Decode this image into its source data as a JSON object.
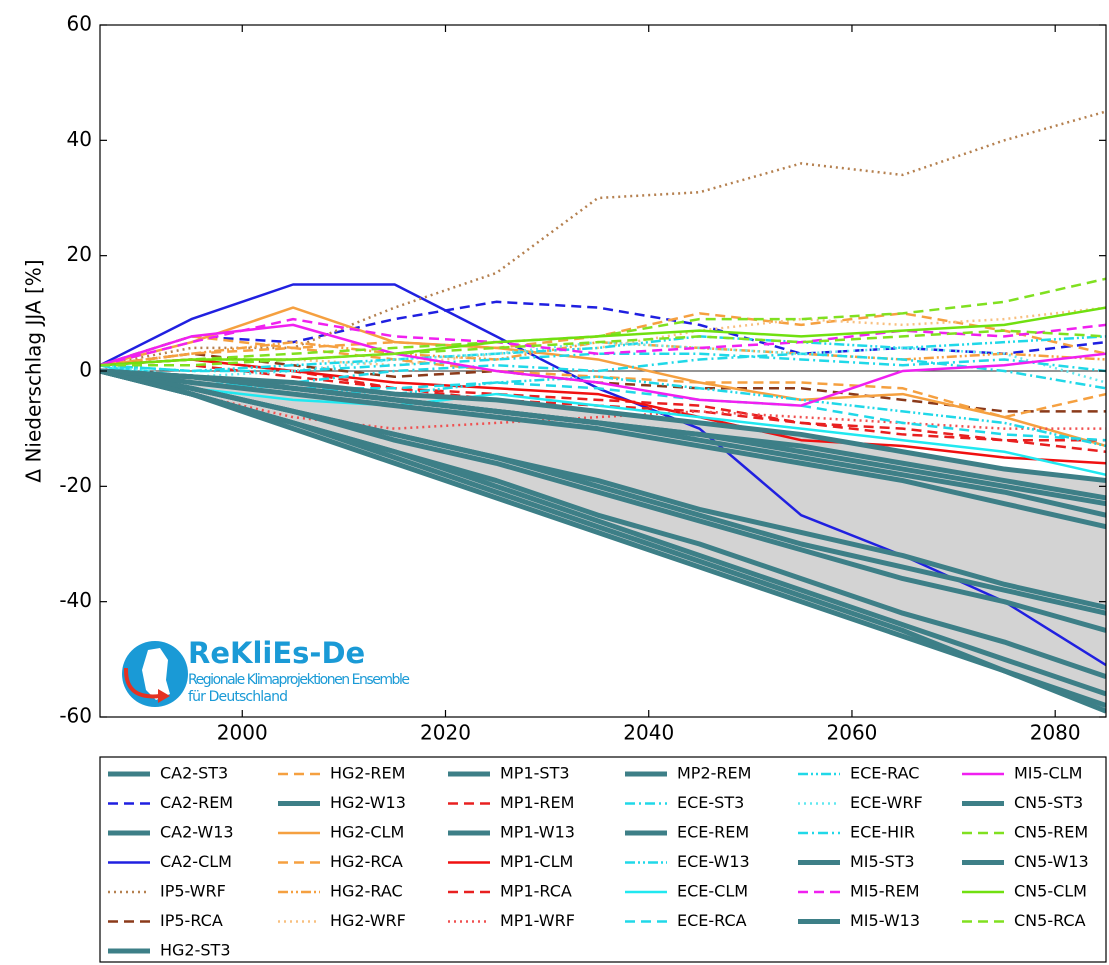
{
  "chart_data": {
    "type": "line",
    "y_label": "Δ Niederschlag JJA [%]",
    "logo_title": "ReKliEs-De",
    "logo_subtitle": [
      "Regionale Klimaprojektionen Ensemble",
      "für Deutschland"
    ],
    "x": [
      1986,
      1995,
      2005,
      2015,
      2025,
      2035,
      2045,
      2055,
      2065,
      2075,
      2085
    ],
    "xlim": [
      1986,
      2085
    ],
    "xticks": [
      2000,
      2020,
      2040,
      2060,
      2080
    ],
    "ylim": [
      -60,
      60
    ],
    "yticks": [
      -60,
      -40,
      -20,
      0,
      20,
      40,
      60
    ],
    "envelope_color": "#d3d3d3",
    "legend": "bottom",
    "series": [
      {
        "name": "CA2-ST3",
        "color": "#3d7f87",
        "style": "thick",
        "values": [
          0,
          -1,
          -3,
          -5,
          -7,
          -9,
          -11,
          -13,
          -16,
          -19,
          -22
        ]
      },
      {
        "name": "CA2-REM",
        "color": "#1f1fe0",
        "style": "dashed",
        "values": [
          1,
          6,
          5,
          9,
          12,
          11,
          8,
          3,
          4,
          3,
          5
        ]
      },
      {
        "name": "CA2-W13",
        "color": "#3d7f87",
        "style": "thick",
        "values": [
          0,
          -3,
          -7,
          -11,
          -15,
          -19,
          -24,
          -28,
          -32,
          -37,
          -41
        ]
      },
      {
        "name": "CA2-CLM",
        "color": "#2020e0",
        "style": "solid",
        "values": [
          1,
          9,
          15,
          15,
          6,
          -3,
          -10,
          -25,
          -32,
          -40,
          -51
        ]
      },
      {
        "name": "IP5-WRF",
        "color": "#b5804f",
        "style": "dotted",
        "values": [
          1,
          4,
          4,
          11,
          17,
          30,
          31,
          36,
          34,
          40,
          45
        ]
      },
      {
        "name": "IP5-RCA",
        "color": "#8b3a1a",
        "style": "dashed",
        "values": [
          1,
          3,
          1,
          -1,
          0,
          -2,
          -3,
          -3,
          -5,
          -7,
          -7
        ]
      },
      {
        "name": "HG2-ST3",
        "color": "#3d7f87",
        "style": "thick",
        "values": [
          0,
          -4,
          -9,
          -14,
          -20,
          -26,
          -32,
          -38,
          -44,
          -50,
          -56
        ]
      },
      {
        "name": "HG2-REM",
        "color": "#f5a040",
        "style": "dashed",
        "values": [
          1,
          6,
          4,
          5,
          4,
          6,
          10,
          8,
          10,
          7,
          3
        ]
      },
      {
        "name": "HG2-W13",
        "color": "#3d7f87",
        "style": "thick",
        "values": [
          0,
          -1,
          -3,
          -5,
          -7,
          -9,
          -12,
          -15,
          -18,
          -21,
          -25
        ]
      },
      {
        "name": "HG2-CLM",
        "color": "#f5a040",
        "style": "solid",
        "values": [
          1,
          5,
          11,
          5,
          4,
          2,
          -2,
          -5,
          -4,
          -8,
          -13
        ]
      },
      {
        "name": "HG2-RCA",
        "color": "#f5a040",
        "style": "dashed",
        "values": [
          1,
          3,
          4,
          2,
          0,
          -1,
          -2,
          -2,
          -3,
          -8,
          -4
        ]
      },
      {
        "name": "HG2-RAC",
        "color": "#f5a040",
        "style": "dashdotdot",
        "values": [
          1,
          3,
          5,
          3,
          2,
          5,
          4,
          3,
          2,
          3,
          2
        ]
      },
      {
        "name": "HG2-WRF",
        "color": "#f8c080",
        "style": "dotted",
        "values": [
          1,
          2,
          2,
          1,
          3,
          4,
          7,
          9,
          8,
          9,
          11
        ]
      },
      {
        "name": "MP1-ST3",
        "color": "#3d7f87",
        "style": "thick",
        "values": [
          0,
          -3,
          -7,
          -12,
          -16,
          -21,
          -26,
          -31,
          -36,
          -40,
          -45
        ]
      },
      {
        "name": "MP1-REM",
        "color": "#e82020",
        "style": "dashed",
        "values": [
          1,
          2,
          0,
          -3,
          -4,
          -5,
          -6,
          -9,
          -10,
          -12,
          -12
        ]
      },
      {
        "name": "MP1-W13",
        "color": "#3d7f87",
        "style": "thick",
        "values": [
          0,
          -1,
          -2,
          -4,
          -5,
          -7,
          -9,
          -11,
          -14,
          -17,
          -19
        ]
      },
      {
        "name": "MP1-CLM",
        "color": "#f01010",
        "style": "solid",
        "values": [
          1,
          2,
          0,
          -2,
          -3,
          -4,
          -8,
          -12,
          -13,
          -15,
          -16
        ]
      },
      {
        "name": "MP1-RCA",
        "color": "#e82020",
        "style": "dashed",
        "values": [
          1,
          1,
          -1,
          -3,
          -5,
          -6,
          -7,
          -9,
          -11,
          -12,
          -14
        ]
      },
      {
        "name": "MP1-WRF",
        "color": "#f05050",
        "style": "dotted",
        "values": [
          1,
          -4,
          -8,
          -10,
          -9,
          -8,
          -7,
          -8,
          -9,
          -10,
          -10
        ]
      },
      {
        "name": "MP2-REM",
        "color": "#3d7f87",
        "style": "thick",
        "values": [
          0,
          -4,
          -10,
          -16,
          -22,
          -28,
          -34,
          -40,
          -46,
          -52,
          -59
        ]
      },
      {
        "name": "ECE-ST3",
        "color": "#20d8e8",
        "style": "dashdot",
        "values": [
          1,
          -1,
          -2,
          0,
          1,
          0,
          2,
          3,
          2,
          0,
          -3
        ]
      },
      {
        "name": "ECE-REM",
        "color": "#3d7f87",
        "style": "thick",
        "values": [
          0,
          -2,
          -4,
          -6,
          -8,
          -10,
          -13,
          -16,
          -19,
          -23,
          -27
        ]
      },
      {
        "name": "ECE-W13",
        "color": "#20d8e8",
        "style": "dashdotdot",
        "values": [
          1,
          -2,
          -3,
          -4,
          -2,
          -1,
          -3,
          -5,
          -7,
          -9,
          -13
        ]
      },
      {
        "name": "ECE-CLM",
        "color": "#20e8f0",
        "style": "solid",
        "values": [
          1,
          -3,
          -5,
          -6,
          -4,
          -6,
          -8,
          -10,
          -12,
          -14,
          -18
        ]
      },
      {
        "name": "ECE-RCA",
        "color": "#20d8e8",
        "style": "dashed",
        "values": [
          1,
          -2,
          -3,
          -3,
          -2,
          -3,
          -5,
          -6,
          -9,
          -11,
          -12
        ]
      },
      {
        "name": "ECE-RAC",
        "color": "#20d8e8",
        "style": "dashdotdot",
        "values": [
          1,
          0,
          1,
          2,
          3,
          4,
          6,
          5,
          4,
          5,
          6
        ]
      },
      {
        "name": "ECE-WRF",
        "color": "#60e8f0",
        "style": "dotted",
        "values": [
          1,
          -1,
          0,
          2,
          3,
          5,
          4,
          3,
          4,
          3,
          -2
        ]
      },
      {
        "name": "ECE-HIR",
        "color": "#20d8e8",
        "style": "dashdot",
        "values": [
          1,
          0,
          0,
          1,
          2,
          3,
          3,
          2,
          1,
          2,
          0
        ]
      },
      {
        "name": "MI5-ST3",
        "color": "#3d7f87",
        "style": "thick",
        "values": [
          0,
          -4,
          -9,
          -14,
          -19,
          -25,
          -30,
          -36,
          -42,
          -47,
          -53
        ]
      },
      {
        "name": "MI5-REM",
        "color": "#f020f0",
        "style": "dashed",
        "values": [
          1,
          5,
          9,
          6,
          5,
          3,
          4,
          5,
          7,
          6,
          8
        ]
      },
      {
        "name": "MI5-W13",
        "color": "#3d7f87",
        "style": "thick",
        "values": [
          0,
          -3,
          -7,
          -11,
          -15,
          -20,
          -25,
          -30,
          -34,
          -38,
          -42
        ]
      },
      {
        "name": "MI5-CLM",
        "color": "#f020f0",
        "style": "solid",
        "values": [
          1,
          6,
          8,
          3,
          0,
          -2,
          -5,
          -6,
          0,
          1,
          3
        ]
      },
      {
        "name": "CN5-ST3",
        "color": "#3d7f87",
        "style": "thick",
        "values": [
          0,
          -1,
          -3,
          -5,
          -7,
          -9,
          -11,
          -14,
          -17,
          -20,
          -23
        ]
      },
      {
        "name": "CN5-REM",
        "color": "#80e020",
        "style": "dashed",
        "values": [
          1,
          2,
          3,
          4,
          5,
          6,
          9,
          9,
          10,
          12,
          16
        ]
      },
      {
        "name": "CN5-W13",
        "color": "#3d7f87",
        "style": "thick",
        "values": [
          0,
          -4,
          -9,
          -15,
          -21,
          -27,
          -33,
          -39,
          -45,
          -52,
          -58
        ]
      },
      {
        "name": "CN5-CLM",
        "color": "#70e010",
        "style": "solid",
        "values": [
          1,
          2,
          2,
          3,
          5,
          6,
          7,
          6,
          7,
          8,
          11
        ]
      },
      {
        "name": "CN5-RCA",
        "color": "#80e020",
        "style": "dashed",
        "values": [
          1,
          1,
          2,
          3,
          4,
          5,
          6,
          5,
          6,
          7,
          6
        ]
      }
    ]
  }
}
